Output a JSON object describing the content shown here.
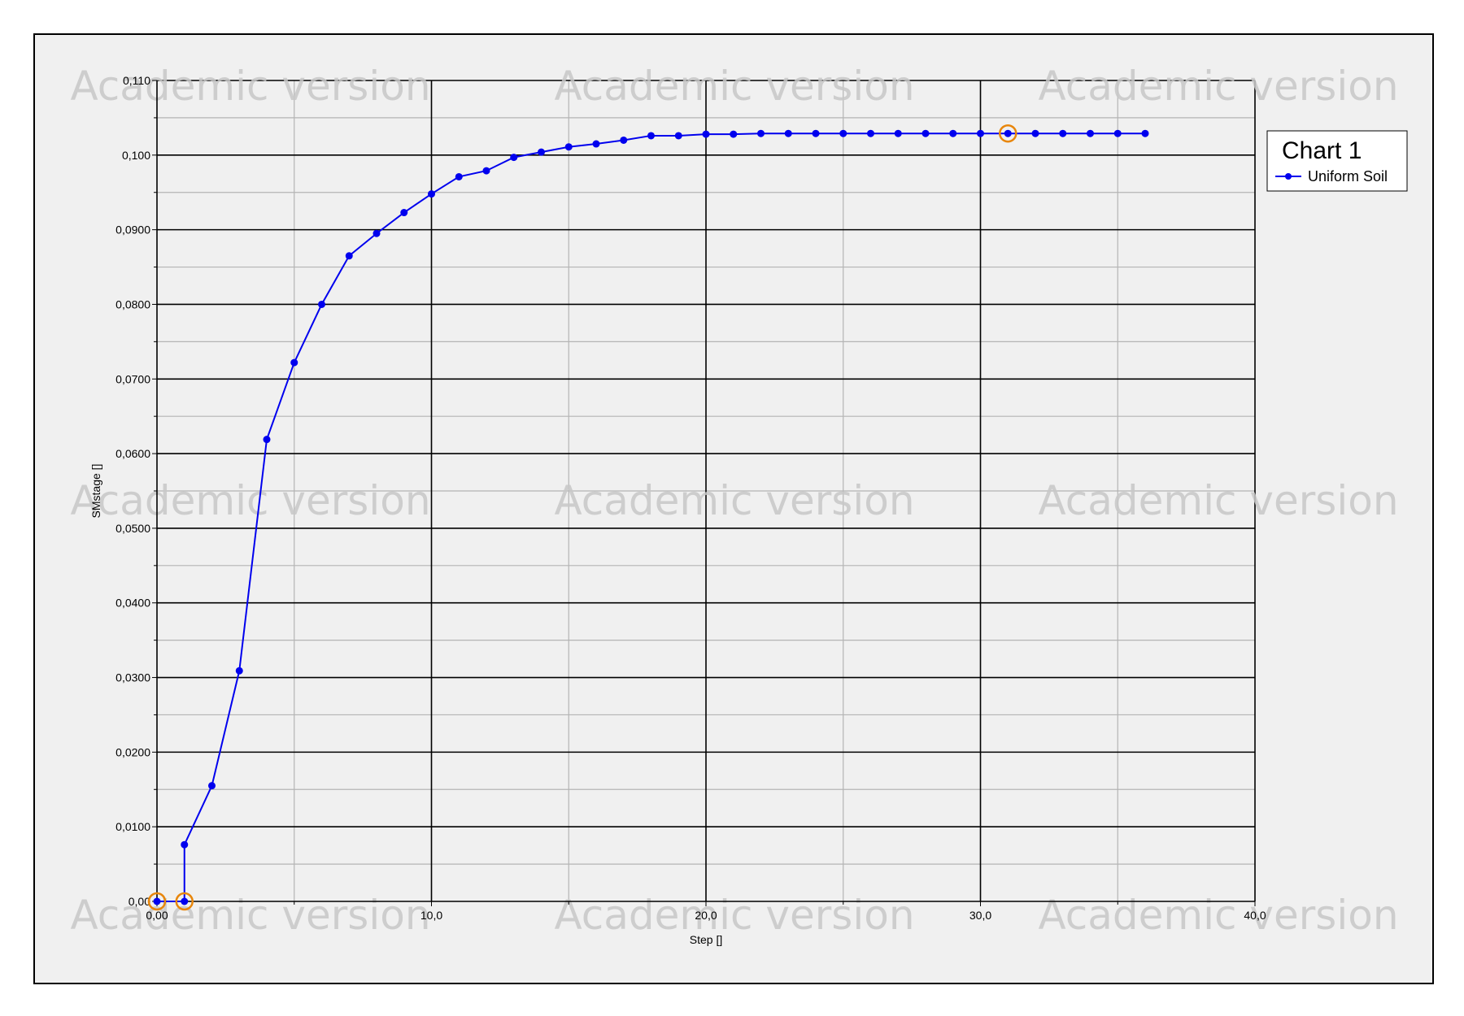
{
  "watermark_text": "Academic version",
  "colors": {
    "series": "#0000ee",
    "highlight": "#e8860b",
    "plot_bg": "#f0f0f0",
    "major_grid": "#000000",
    "minor_grid": "#b4b4b4"
  },
  "chart_data": {
    "type": "line",
    "xlabel": "Step []",
    "ylabel": "SMstage []",
    "xlim": [
      0,
      40
    ],
    "ylim": [
      0,
      0.11
    ],
    "grid": true,
    "legend_position": "right",
    "legend": {
      "title": "Chart 1",
      "entries": [
        "Uniform Soil"
      ]
    },
    "x_ticks": [
      {
        "value": 0,
        "label": "0,00"
      },
      {
        "value": 10,
        "label": "10,0"
      },
      {
        "value": 20,
        "label": "20,0"
      },
      {
        "value": 30,
        "label": "30,0"
      },
      {
        "value": 40,
        "label": "40,0"
      }
    ],
    "y_ticks": [
      {
        "value": 0,
        "label": "0,00"
      },
      {
        "value": 0.01,
        "label": "0,0100"
      },
      {
        "value": 0.02,
        "label": "0,0200"
      },
      {
        "value": 0.03,
        "label": "0,0300"
      },
      {
        "value": 0.04,
        "label": "0,0400"
      },
      {
        "value": 0.05,
        "label": "0,0500"
      },
      {
        "value": 0.06,
        "label": "0,0600"
      },
      {
        "value": 0.07,
        "label": "0,0700"
      },
      {
        "value": 0.08,
        "label": "0,0800"
      },
      {
        "value": 0.09,
        "label": "0,0900"
      },
      {
        "value": 0.1,
        "label": "0,100"
      },
      {
        "value": 0.11,
        "label": "0,110"
      }
    ],
    "series": [
      {
        "name": "Uniform Soil",
        "x": [
          0,
          1,
          1,
          2,
          3,
          4,
          5,
          6,
          7,
          8,
          9,
          10,
          11,
          12,
          13,
          14,
          15,
          16,
          17,
          18,
          19,
          20,
          21,
          22,
          23,
          24,
          25,
          26,
          27,
          28,
          29,
          30,
          31,
          32,
          33,
          34,
          35,
          36
        ],
        "y": [
          0,
          0,
          0.0076,
          0.0155,
          0.0309,
          0.0619,
          0.0722,
          0.08,
          0.0865,
          0.0895,
          0.0923,
          0.0948,
          0.0971,
          0.0979,
          0.0997,
          0.1004,
          0.1011,
          0.1015,
          0.102,
          0.1026,
          0.1026,
          0.1028,
          0.1028,
          0.1029,
          0.1029,
          0.1029,
          0.1029,
          0.1029,
          0.1029,
          0.1029,
          0.1029,
          0.1029,
          0.1029,
          0.1029,
          0.1029,
          0.1029,
          0.1029,
          0.1029
        ]
      }
    ],
    "highlighted_points": [
      {
        "x": 0,
        "y": 0
      },
      {
        "x": 1,
        "y": 0
      },
      {
        "x": 31,
        "y": 0.1029
      }
    ]
  }
}
